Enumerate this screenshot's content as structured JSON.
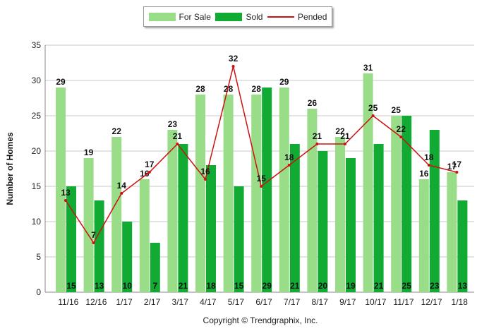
{
  "chart_data": {
    "type": "bar",
    "categories": [
      "11/16",
      "12/16",
      "1/17",
      "2/17",
      "3/17",
      "4/17",
      "5/17",
      "6/17",
      "7/17",
      "8/17",
      "9/17",
      "10/17",
      "11/17",
      "12/17",
      "1/18"
    ],
    "series": [
      {
        "name": "For Sale",
        "type": "bar",
        "color": "#99dd88",
        "values": [
          29,
          19,
          22,
          16,
          23,
          28,
          28,
          28,
          29,
          26,
          22,
          31,
          25,
          16,
          17
        ]
      },
      {
        "name": "Sold",
        "type": "bar",
        "color": "#11aa33",
        "values": [
          15,
          13,
          10,
          7,
          21,
          18,
          15,
          29,
          21,
          20,
          19,
          21,
          25,
          23,
          13
        ]
      },
      {
        "name": "Pended",
        "type": "line",
        "color": "#cc1111",
        "values": [
          13,
          7,
          14,
          17,
          21,
          16,
          32,
          15,
          18,
          21,
          21,
          25,
          22,
          18,
          17
        ]
      }
    ],
    "ylabel": "Number of Homes",
    "ylim": [
      0,
      35
    ],
    "yticks": [
      0,
      5,
      10,
      15,
      20,
      25,
      30,
      35
    ],
    "grid": true,
    "legend_position": "top-center"
  },
  "footer": {
    "copyright": "Copyright © Trendgraphix, Inc."
  },
  "colors": {
    "grid": "#c8c8c8",
    "axis": "#888888"
  }
}
